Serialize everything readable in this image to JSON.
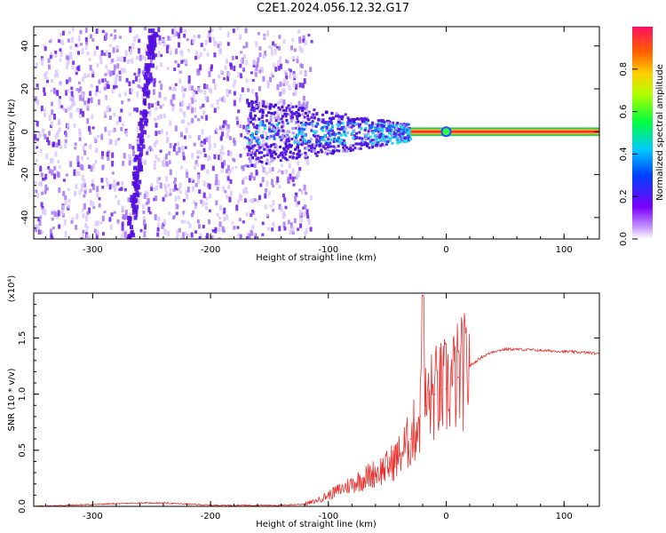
{
  "title": "C2E1.2024.056.12.32.G17",
  "colors": {
    "snr_line": "#e8312e",
    "axis": "#000000",
    "spectrogram_low": "#c9b6ff",
    "spectrogram_mid": "#5a1ee8",
    "spectrogram_peak": "#ff2050"
  },
  "chart_data": [
    {
      "type": "heatmap",
      "xlabel": "Height of straight line (km)",
      "ylabel": "Frequency (Hz)",
      "xlim": [
        -350,
        130
      ],
      "ylim": [
        -50,
        49
      ],
      "xticks": [
        -300,
        -200,
        -100,
        0,
        100
      ],
      "yticks": [
        -40,
        -20,
        0,
        20,
        40
      ],
      "colorbar": {
        "label": "Normalized spectral amplitude",
        "range": [
          0.0,
          1.0
        ],
        "ticks": [
          "0.0",
          "0.2",
          "0.4",
          "0.6",
          "0.8"
        ],
        "colormap": "rainbow (purple-blue-cyan-green-yellow-orange-red)"
      },
      "features": [
        {
          "region": "noise",
          "x_range": [
            -350,
            -135
          ],
          "y_range": [
            -50,
            49
          ],
          "amplitude": 0.1
        },
        {
          "region": "diagonal streak",
          "x_range": [
            -270,
            -245
          ],
          "y_range": [
            -50,
            49
          ],
          "amplitude": 0.2
        },
        {
          "region": "signal band broadening",
          "x_range": [
            -170,
            -30
          ],
          "y_range": [
            -20,
            15
          ],
          "amplitude": 0.4
        },
        {
          "region": "stable tone",
          "x_range": [
            -30,
            130
          ],
          "y_range": [
            -1,
            1
          ],
          "amplitude": 1.0
        }
      ]
    },
    {
      "type": "line",
      "xlabel": "Height of straight line (km)",
      "ylabel": "SNR (10 * v/v)",
      "y_multiplier": "(x10⁴)",
      "xlim": [
        -350,
        130
      ],
      "ylim": [
        0.0,
        1.9
      ],
      "xticks": [
        -300,
        -200,
        -100,
        0,
        100
      ],
      "yticks": [
        "0.0",
        "0.5",
        "1.0",
        "1.5"
      ],
      "series": [
        {
          "x": [
            -350,
            -320,
            -290,
            -260,
            -250,
            -240,
            -220,
            -200,
            -170,
            -140,
            -120,
            -110,
            -100,
            -90,
            -80,
            -70,
            -60,
            -50,
            -40,
            -30,
            -22,
            -20,
            -18,
            -10,
            0,
            10,
            20,
            30,
            40,
            50,
            60,
            80,
            100,
            120,
            130
          ],
          "y": [
            0.0,
            0.01,
            0.02,
            0.03,
            0.03,
            0.03,
            0.02,
            0.01,
            0.01,
            0.01,
            0.02,
            0.05,
            0.1,
            0.15,
            0.2,
            0.25,
            0.3,
            0.35,
            0.45,
            0.6,
            0.8,
            1.88,
            0.9,
            1.0,
            1.05,
            1.15,
            1.25,
            1.33,
            1.38,
            1.4,
            1.4,
            1.39,
            1.38,
            1.37,
            1.36
          ]
        }
      ]
    }
  ]
}
